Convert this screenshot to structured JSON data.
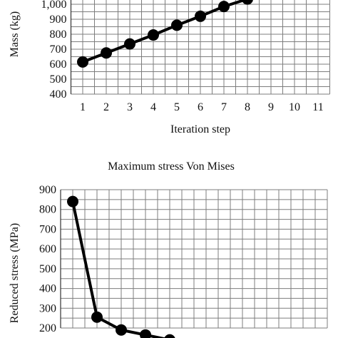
{
  "chart_data": [
    {
      "type": "line",
      "title": "",
      "xlabel": "Iteration step",
      "ylabel": "Mass (kg)",
      "xlim": [
        0.5,
        11.5
      ],
      "ylim": [
        400,
        1050
      ],
      "x_ticks": [
        "1",
        "2",
        "3",
        "4",
        "5",
        "6",
        "7",
        "8",
        "9",
        "10",
        "11"
      ],
      "y_ticks": [
        {
          "value": 400,
          "label": "400"
        },
        {
          "value": 500,
          "label": "500"
        },
        {
          "value": 600,
          "label": "600"
        },
        {
          "value": 700,
          "label": "700"
        },
        {
          "value": 800,
          "label": "800"
        },
        {
          "value": 900,
          "label": "900"
        },
        {
          "value": 1000,
          "label": "1,000"
        }
      ],
      "grid": true,
      "series": [
        {
          "x": [
            1,
            2,
            3,
            4,
            5,
            6,
            7,
            8
          ],
          "values": [
            615,
            675,
            735,
            795,
            860,
            920,
            985,
            1035
          ],
          "color": "#000000"
        }
      ]
    },
    {
      "type": "line",
      "title": "Maximum stress Von Mises",
      "xlabel": "",
      "ylabel": "Reduced stress (MPa)",
      "xlim": [
        0.5,
        11.5
      ],
      "ylim": [
        200,
        900
      ],
      "y_ticks": [
        {
          "value": 200,
          "label": "200"
        },
        {
          "value": 300,
          "label": "300"
        },
        {
          "value": 400,
          "label": "400"
        },
        {
          "value": 500,
          "label": "500"
        },
        {
          "value": 600,
          "label": "600"
        },
        {
          "value": 700,
          "label": "700"
        },
        {
          "value": 800,
          "label": "800"
        },
        {
          "value": 900,
          "label": "900"
        }
      ],
      "grid": true,
      "series": [
        {
          "x": [
            1,
            2,
            3,
            4,
            5
          ],
          "values": [
            840,
            255,
            190,
            165,
            140
          ],
          "color": "#000000"
        }
      ]
    }
  ]
}
